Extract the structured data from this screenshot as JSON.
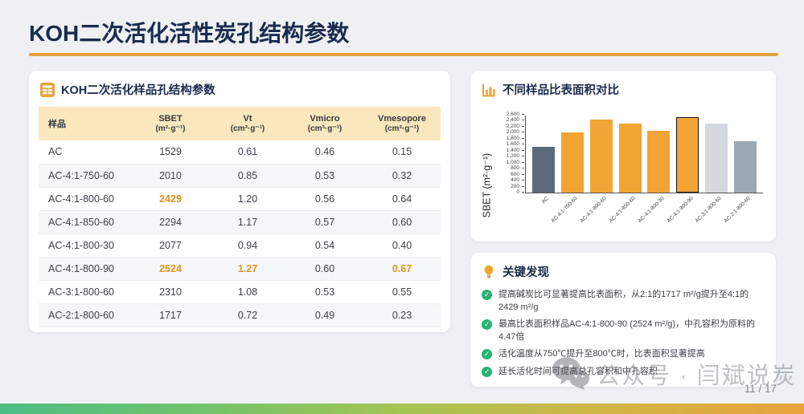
{
  "header": {
    "title": "KOH二次活化活性炭孔结构参数",
    "accent_color": "#E2A33C"
  },
  "table_card": {
    "title": "KOH二次活化样品孔结构参数",
    "columns": [
      {
        "label": "样品",
        "unit": ""
      },
      {
        "label": "SBET",
        "unit": "(m²·g⁻¹)"
      },
      {
        "label": "Vt",
        "unit": "(cm³·g⁻¹)"
      },
      {
        "label": "Vmicro",
        "unit": "(cm³·g⁻¹)"
      },
      {
        "label": "Vmesopore",
        "unit": "(cm³·g⁻¹)"
      }
    ],
    "rows": [
      {
        "cells": [
          "AC",
          "1529",
          "0.61",
          "0.46",
          "0.15"
        ],
        "highlight": []
      },
      {
        "cells": [
          "AC-4:1-750-60",
          "2010",
          "0.85",
          "0.53",
          "0.32"
        ],
        "highlight": []
      },
      {
        "cells": [
          "AC-4:1-800-60",
          "2429",
          "1.20",
          "0.56",
          "0.64"
        ],
        "highlight": [
          1
        ]
      },
      {
        "cells": [
          "AC-4:1-850-60",
          "2294",
          "1.17",
          "0.57",
          "0.60"
        ],
        "highlight": []
      },
      {
        "cells": [
          "AC-4:1-800-30",
          "2077",
          "0.94",
          "0.54",
          "0.40"
        ],
        "highlight": []
      },
      {
        "cells": [
          "AC-4:1-800-90",
          "2524",
          "1.27",
          "0.60",
          "0.67"
        ],
        "highlight": [
          1,
          2,
          4
        ]
      },
      {
        "cells": [
          "AC-3:1-800-60",
          "2310",
          "1.08",
          "0.53",
          "0.55"
        ],
        "highlight": []
      },
      {
        "cells": [
          "AC-2:1-800-60",
          "1717",
          "0.72",
          "0.49",
          "0.23"
        ],
        "highlight": []
      }
    ],
    "highlight_color": "#E0951F"
  },
  "chart_card": {
    "title": "不同样品比表面积对比"
  },
  "chart_data": {
    "type": "bar",
    "title": "不同样品比表面积对比",
    "ylabel": "SBET (m²·g⁻¹)",
    "categories": [
      "AC",
      "AC-4:1-750-60",
      "AC-4:1-800-60",
      "AC-4:1-850-60",
      "AC-4:1-800-30",
      "AC-4:1-800-90",
      "AC-3:1-800-60",
      "AC-2:1-800-60"
    ],
    "values": [
      1529,
      2010,
      2429,
      2294,
      2077,
      2524,
      2310,
      1717
    ],
    "ylim": [
      0,
      2600
    ],
    "ytick_step": 200,
    "bar_colors": [
      "#5C6B7A",
      "#F2A435",
      "#F2A435",
      "#F2A435",
      "#F2A435",
      "#F2A435",
      "#D4D9DF",
      "#9EA8B3"
    ],
    "highlight_index": 5,
    "grid": false,
    "legend": false
  },
  "findings": {
    "title": "关键发现",
    "items": [
      "提高碱炭比可显著提高比表面积，从2:1的1717 m²/g提升至4:1的2429 m²/g",
      "最高比表面积样品AC-4:1-800-90 (2524 m²/g)，中孔容积为原料的4.47倍",
      "活化温度从750℃提升至800℃时，比表面积显著提高",
      "延长活化时间可提高总孔容积和中孔容积"
    ],
    "check_color": "#27B473"
  },
  "footer": {
    "watermark": "公众号 · 闫斌说炭",
    "page_number": "11 / 17"
  }
}
